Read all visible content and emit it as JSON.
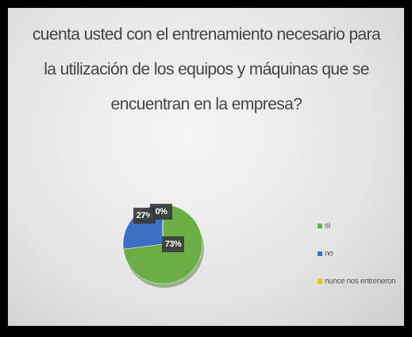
{
  "chart_data": {
    "type": "pie",
    "title": "cuenta usted con el entrenamiento necesario para la utilización de los equipos y máquinas que se encuentran en la empresa?",
    "categories": [
      "sí",
      "no",
      "nunce nos entreneron"
    ],
    "values": [
      73,
      27,
      0
    ],
    "value_labels": [
      "73%",
      "27%",
      "0%"
    ],
    "colors": [
      "#6aae45",
      "#3f6fc2",
      "#f5c000"
    ],
    "legend": "right"
  }
}
